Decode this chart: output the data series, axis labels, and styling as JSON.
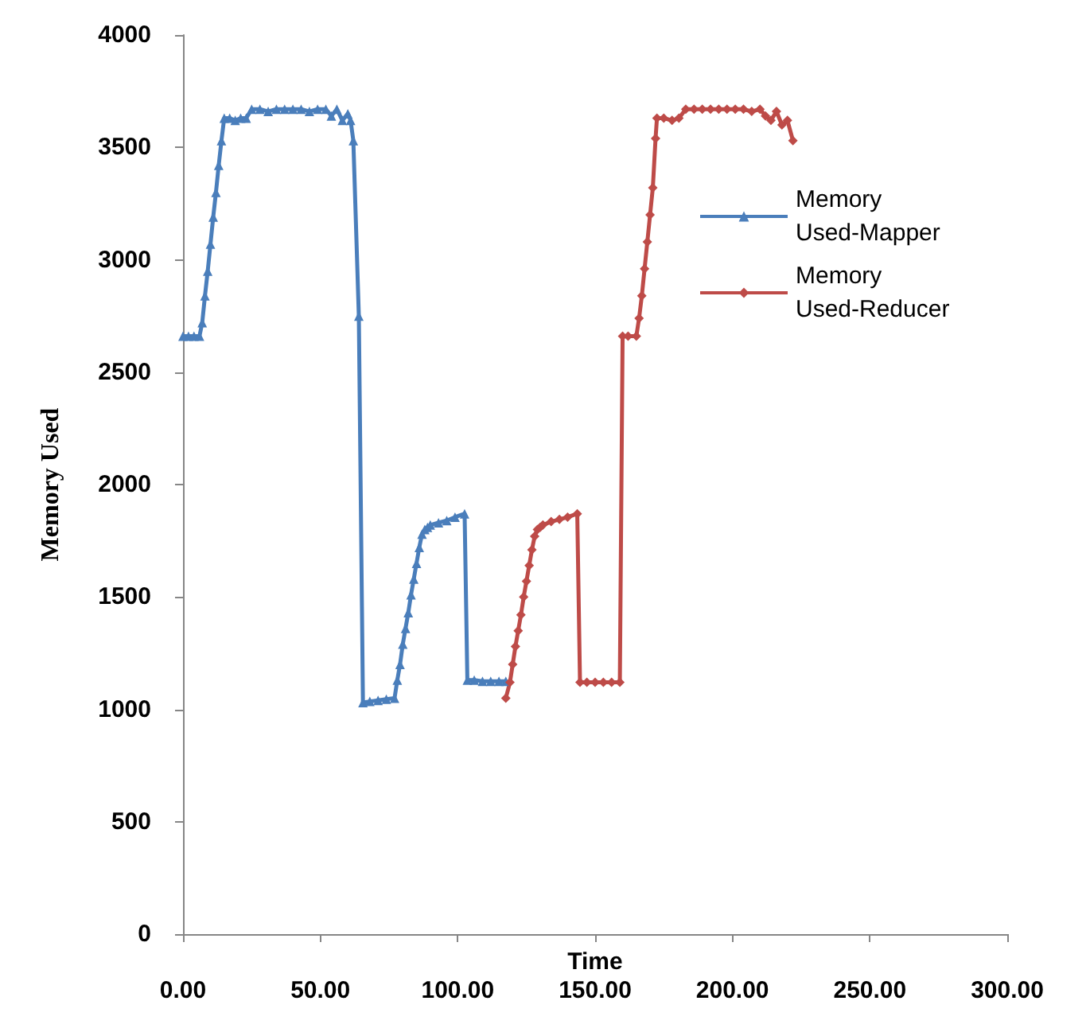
{
  "chart_data": {
    "type": "line",
    "xlabel": "Time",
    "ylabel": "Memory Used",
    "series": [
      {
        "name": "Memory Used-Mapper",
        "color": "#4a7ebb",
        "marker": "triangle",
        "x": [
          0,
          2,
          4,
          6,
          7,
          8,
          9,
          10,
          11,
          12,
          13,
          14,
          15,
          17,
          19,
          21,
          23,
          25,
          28,
          31,
          34,
          37,
          40,
          43,
          46,
          49,
          52,
          54,
          56,
          58,
          60,
          61,
          62,
          64,
          65.5,
          68,
          71,
          74,
          77,
          78,
          79,
          80,
          81,
          82,
          83,
          84,
          85,
          86,
          87,
          88,
          89,
          90,
          93,
          96,
          99,
          102.5,
          103.5,
          106,
          109,
          112,
          115,
          117.5
        ],
        "values": [
          2660,
          2660,
          2660,
          2660,
          2720,
          2840,
          2950,
          3070,
          3190,
          3300,
          3420,
          3530,
          3630,
          3630,
          3620,
          3630,
          3630,
          3670,
          3670,
          3660,
          3670,
          3670,
          3670,
          3670,
          3660,
          3670,
          3670,
          3640,
          3670,
          3620,
          3650,
          3620,
          3530,
          2750,
          1030,
          1035,
          1040,
          1045,
          1050,
          1130,
          1200,
          1290,
          1360,
          1430,
          1510,
          1580,
          1650,
          1720,
          1780,
          1800,
          1810,
          1820,
          1830,
          1840,
          1855,
          1870,
          1130,
          1130,
          1125,
          1125,
          1125,
          1125
        ]
      },
      {
        "name": "Memory Used-Reducer",
        "color": "#be4b48",
        "marker": "diamond",
        "x": [
          117.5,
          119,
          120,
          121,
          122,
          123,
          124,
          125,
          126,
          127,
          128,
          129,
          130,
          131,
          134,
          137,
          140,
          143.5,
          144.5,
          147,
          150,
          153,
          156,
          159,
          160,
          162,
          165,
          166,
          167,
          168,
          169,
          170,
          171,
          172,
          172.5,
          175,
          178,
          180.5,
          183,
          186,
          189,
          192,
          195,
          198,
          201,
          204,
          207,
          210,
          212,
          214,
          216,
          218,
          220,
          222
        ],
        "values": [
          1050,
          1120,
          1200,
          1280,
          1350,
          1420,
          1500,
          1570,
          1640,
          1710,
          1770,
          1800,
          1810,
          1820,
          1835,
          1845,
          1855,
          1870,
          1120,
          1120,
          1120,
          1120,
          1120,
          1120,
          2660,
          2660,
          2660,
          2740,
          2840,
          2960,
          3080,
          3200,
          3320,
          3540,
          3630,
          3630,
          3620,
          3630,
          3670,
          3670,
          3670,
          3670,
          3670,
          3670,
          3670,
          3670,
          3660,
          3670,
          3640,
          3620,
          3660,
          3600,
          3620,
          3530
        ]
      }
    ],
    "xlim": [
      0,
      300
    ],
    "xticks": [
      {
        "value": 0,
        "label": "0.00"
      },
      {
        "value": 50,
        "label": "50.00"
      },
      {
        "value": 100,
        "label": "100.00"
      },
      {
        "value": 150,
        "label": "150.00"
      },
      {
        "value": 200,
        "label": "200.00"
      },
      {
        "value": 250,
        "label": "250.00"
      },
      {
        "value": 300,
        "label": "300.00"
      }
    ],
    "ylim": [
      0,
      4000
    ],
    "yticks": [
      0,
      500,
      1000,
      1500,
      2000,
      2500,
      3000,
      3500,
      4000
    ],
    "grid": false,
    "legend": "right"
  }
}
